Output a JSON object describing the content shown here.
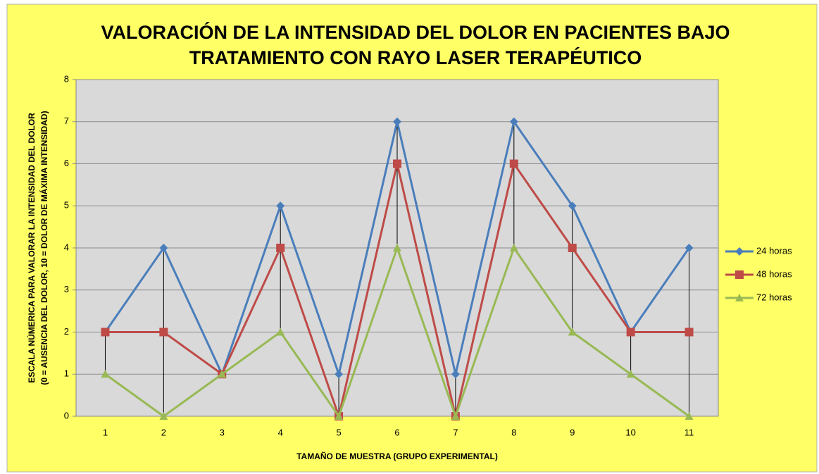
{
  "chart_data": {
    "type": "line",
    "title": [
      "VALORACIÓN DE LA INTENSIDAD DEL DOLOR EN PACIENTES BAJO",
      "TRATAMIENTO CON RAYO LASER TERAPÉUTICO"
    ],
    "x_label": "TAMAÑO DE MUESTRA  (GRUPO EXPERIMENTAL)",
    "y_label": [
      "ESCALA NÚMERICA PARA VALORAR LA INTENSIDAD DEL DOLOR",
      "(0 = AUSENCIA DEL DOLOR, 10 = DOLOR DE MÁXIMA INTENSIDAD)"
    ],
    "categories": [
      "1",
      "2",
      "3",
      "4",
      "5",
      "6",
      "7",
      "8",
      "9",
      "10",
      "11"
    ],
    "series": [
      {
        "name": "24 horas",
        "color": "#4a7ebb",
        "marker": "diamond",
        "values": [
          2,
          4,
          1,
          5,
          1,
          7,
          1,
          7,
          5,
          2,
          4
        ]
      },
      {
        "name": "48 horas",
        "color": "#be4b48",
        "marker": "square",
        "values": [
          2,
          2,
          1,
          4,
          0,
          6,
          0,
          6,
          4,
          2,
          2
        ]
      },
      {
        "name": "72 horas",
        "color": "#98b954",
        "marker": "triangle",
        "values": [
          1,
          0,
          1,
          2,
          0,
          4,
          0,
          4,
          2,
          1,
          0
        ]
      }
    ],
    "ylim": [
      0,
      8
    ],
    "yticks": [
      0,
      1,
      2,
      3,
      4,
      5,
      6,
      7,
      8
    ],
    "grid": true,
    "high_low_lines": true,
    "legend": "right"
  }
}
